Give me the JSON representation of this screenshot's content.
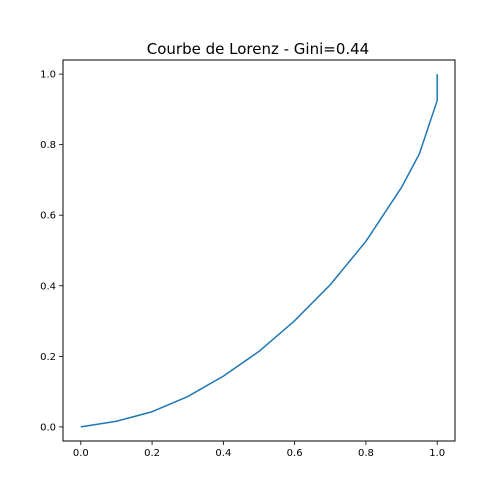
{
  "chart_data": {
    "type": "line",
    "title": "Courbe de Lorenz - Gini=0.44",
    "xlabel": "",
    "ylabel": "",
    "xlim": [
      -0.05,
      1.05
    ],
    "ylim": [
      -0.04,
      1.04
    ],
    "x_ticks": [
      0.0,
      0.2,
      0.4,
      0.6,
      0.8,
      1.0
    ],
    "x_tick_labels": [
      "0.0",
      "0.2",
      "0.4",
      "0.6",
      "0.8",
      "1.0"
    ],
    "y_ticks": [
      0.0,
      0.2,
      0.4,
      0.6,
      0.8,
      1.0
    ],
    "y_tick_labels": [
      "0.0",
      "0.2",
      "0.4",
      "0.6",
      "0.8",
      "1.0"
    ],
    "grid": false,
    "series": [
      {
        "color": "#1f77b4",
        "x": [
          0.0,
          0.1,
          0.2,
          0.3,
          0.4,
          0.5,
          0.6,
          0.7,
          0.8,
          0.9,
          0.95,
          1.0,
          1.0
        ],
        "y": [
          0.0,
          0.016,
          0.043,
          0.086,
          0.144,
          0.214,
          0.301,
          0.403,
          0.526,
          0.679,
          0.774,
          0.925,
          1.0
        ]
      }
    ]
  }
}
